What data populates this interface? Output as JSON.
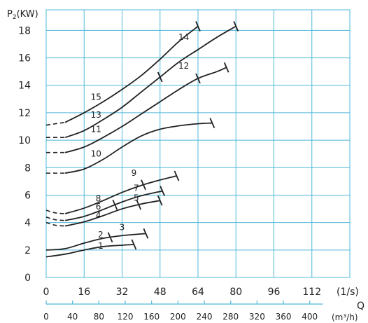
{
  "chart_data": {
    "type": "line",
    "title": "",
    "ylabel": "P",
    "ylabel_subscript": "2",
    "ylabel_unit": "(KW)",
    "xlabel": "Q",
    "x_unit": "(1/s)",
    "x2_unit": "(m³/h)",
    "xlim": [
      0,
      128
    ],
    "ylim": [
      0,
      19.5
    ],
    "x_ticks": [
      "0",
      "16",
      "32",
      "48",
      "64",
      "80",
      "96",
      "112"
    ],
    "x_tick_values": [
      0,
      16,
      32,
      48,
      64,
      80,
      96,
      112
    ],
    "x2_ticks": [
      "0",
      "40",
      "80",
      "120",
      "160",
      "200",
      "240",
      "280",
      "320",
      "360",
      "400"
    ],
    "x2_tick_values": [
      0,
      40,
      80,
      120,
      160,
      200,
      240,
      280,
      320,
      360,
      400
    ],
    "y_ticks": [
      "0",
      "2",
      "4",
      "6",
      "8",
      "10",
      "12",
      "14",
      "16",
      "18"
    ],
    "y_tick_values": [
      0,
      2,
      4,
      6,
      8,
      10,
      12,
      14,
      16,
      18
    ],
    "grid": true,
    "grid_x_values": [
      0,
      16,
      32,
      48,
      64,
      80,
      96,
      112,
      128
    ],
    "grid_y_values": [
      2,
      4,
      6,
      8,
      10,
      12,
      14,
      16,
      18
    ],
    "colors": {
      "grid": "#4fb8d8",
      "curve": "#222222",
      "axis_text": "#222222"
    },
    "series": [
      {
        "name": "1",
        "dashed_to_x": 0,
        "points": [
          [
            0,
            1.5
          ],
          [
            8,
            1.7
          ],
          [
            16,
            2.0
          ],
          [
            24,
            2.25
          ],
          [
            32,
            2.35
          ],
          [
            37,
            2.4
          ]
        ],
        "ticks": [
          37
        ]
      },
      {
        "name": "2",
        "dashed_to_x": 0,
        "points": [
          [
            0,
            2.0
          ],
          [
            8,
            2.1
          ],
          [
            16,
            2.5
          ],
          [
            24,
            2.85
          ],
          [
            32,
            3.05
          ],
          [
            42,
            3.2
          ]
        ],
        "ticks": [
          27,
          42
        ]
      },
      {
        "name": "3",
        "label_only": true,
        "label_x": 36,
        "label_y": 3.45
      },
      {
        "name": "4",
        "dashed_to_x": 8,
        "points": [
          [
            0,
            4.0
          ],
          [
            4,
            3.8
          ],
          [
            8,
            3.75
          ],
          [
            16,
            4.05
          ],
          [
            24,
            4.5
          ],
          [
            32,
            5.0
          ],
          [
            40,
            5.35
          ],
          [
            48,
            5.6
          ]
        ],
        "ticks": [
          39,
          48
        ]
      },
      {
        "name": "5",
        "label_only": true,
        "label_x": 44,
        "label_y": 5.65
      },
      {
        "name": "6",
        "dashed_to_x": 8,
        "points": [
          [
            0,
            4.4
          ],
          [
            4,
            4.2
          ],
          [
            8,
            4.15
          ],
          [
            16,
            4.45
          ],
          [
            24,
            4.95
          ],
          [
            32,
            5.5
          ],
          [
            40,
            5.95
          ],
          [
            49,
            6.3
          ]
        ],
        "ticks": [
          29,
          49
        ]
      },
      {
        "name": "7",
        "label_only": true,
        "label_x": 44,
        "label_y": 6.35
      },
      {
        "name": "8",
        "dashed_to_x": 8,
        "points": [
          [
            0,
            4.9
          ],
          [
            4,
            4.7
          ],
          [
            8,
            4.65
          ],
          [
            16,
            5.05
          ],
          [
            24,
            5.6
          ],
          [
            32,
            6.2
          ],
          [
            40,
            6.7
          ],
          [
            48,
            7.1
          ],
          [
            55,
            7.4
          ]
        ],
        "ticks": [
          41,
          55
        ]
      },
      {
        "name": "9",
        "label_only": true,
        "label_x": 42,
        "label_y": 7.45
      },
      {
        "name": "10",
        "dashed_to_x": 8,
        "points": [
          [
            0,
            7.6
          ],
          [
            8,
            7.6
          ],
          [
            16,
            7.9
          ],
          [
            24,
            8.6
          ],
          [
            32,
            9.5
          ],
          [
            40,
            10.3
          ],
          [
            48,
            10.8
          ],
          [
            56,
            11.05
          ],
          [
            64,
            11.2
          ],
          [
            70,
            11.25
          ]
        ],
        "ticks": [
          70
        ]
      },
      {
        "name": "11",
        "dashed_to_x": 8,
        "points": [
          [
            0,
            9.1
          ],
          [
            8,
            9.1
          ],
          [
            16,
            9.5
          ],
          [
            24,
            10.2
          ],
          [
            32,
            11.0
          ],
          [
            40,
            11.9
          ],
          [
            48,
            12.8
          ],
          [
            56,
            13.7
          ],
          [
            64,
            14.5
          ],
          [
            72,
            15.0
          ],
          [
            76,
            15.3
          ]
        ],
        "ticks": [
          64,
          76
        ]
      },
      {
        "name": "12",
        "label_only": true,
        "label_x": 66,
        "label_y": 15.1
      },
      {
        "name": "13",
        "dashed_to_x": 8,
        "points": [
          [
            0,
            10.2
          ],
          [
            8,
            10.2
          ],
          [
            16,
            10.7
          ],
          [
            24,
            11.5
          ],
          [
            32,
            12.4
          ],
          [
            40,
            13.5
          ],
          [
            48,
            14.6
          ],
          [
            56,
            15.7
          ],
          [
            64,
            16.6
          ],
          [
            72,
            17.5
          ],
          [
            80,
            18.3
          ]
        ],
        "ticks": [
          48,
          80
        ]
      },
      {
        "name": "14",
        "label_only": true,
        "label_x": 66,
        "label_y": 17.4
      },
      {
        "name": "15",
        "dashed_to_x": 8,
        "points": [
          [
            0,
            11.1
          ],
          [
            8,
            11.3
          ],
          [
            16,
            12.0
          ],
          [
            24,
            12.8
          ],
          [
            32,
            13.7
          ],
          [
            40,
            14.7
          ],
          [
            48,
            15.9
          ],
          [
            56,
            17.2
          ],
          [
            64,
            18.3
          ]
        ],
        "ticks": [
          64
        ]
      }
    ],
    "curve_labels": [
      {
        "text": "1",
        "x": 23,
        "y": 2.1
      },
      {
        "text": "2",
        "x": 23,
        "y": 2.9
      },
      {
        "text": "3",
        "x": 32,
        "y": 3.45
      },
      {
        "text": "4",
        "x": 22,
        "y": 4.35
      },
      {
        "text": "5",
        "x": 38,
        "y": 5.6
      },
      {
        "text": "6",
        "x": 22,
        "y": 4.95
      },
      {
        "text": "7",
        "x": 38,
        "y": 6.3
      },
      {
        "text": "8",
        "x": 22,
        "y": 5.55
      },
      {
        "text": "9",
        "x": 37,
        "y": 7.4
      },
      {
        "text": "10",
        "x": 21,
        "y": 8.8
      },
      {
        "text": "11",
        "x": 21,
        "y": 10.6
      },
      {
        "text": "12",
        "x": 58,
        "y": 15.2
      },
      {
        "text": "13",
        "x": 21,
        "y": 11.65
      },
      {
        "text": "14",
        "x": 58,
        "y": 17.3
      },
      {
        "text": "15",
        "x": 21,
        "y": 12.95
      }
    ]
  }
}
